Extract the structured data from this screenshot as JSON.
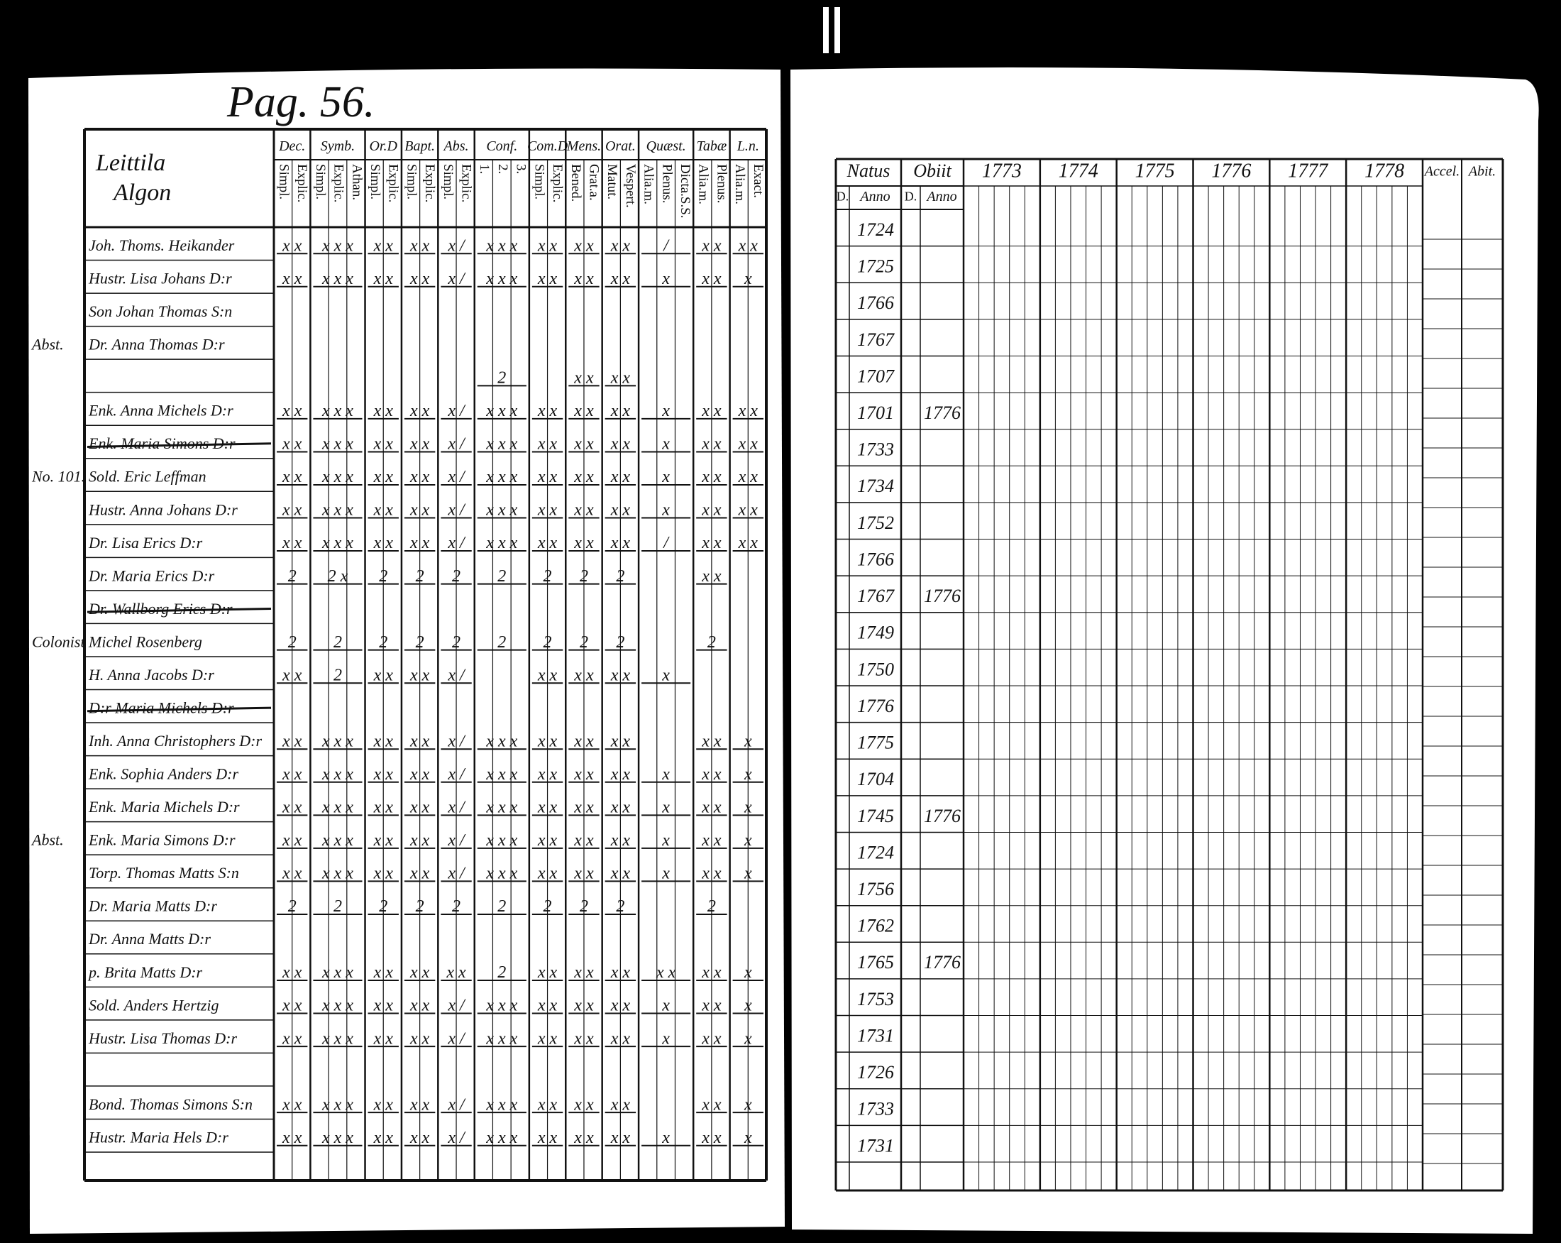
{
  "header": {
    "title": "Pag. 56."
  },
  "left_table": {
    "name_header": [
      "Leittila",
      "Algon"
    ],
    "column_groups": [
      {
        "label": "Dec.",
        "subs": [
          "Simpl.",
          "Explic."
        ]
      },
      {
        "label": "Symb.",
        "subs": [
          "Simpl.",
          "Explic.",
          "Athan."
        ]
      },
      {
        "label": "Or.D",
        "subs": [
          "Simpl.",
          "Explic."
        ]
      },
      {
        "label": "Bapt.",
        "subs": [
          "Simpl.",
          "Explic."
        ]
      },
      {
        "label": "Abs.",
        "subs": [
          "Simpl.",
          "Explic."
        ]
      },
      {
        "label": "Conf.",
        "subs": [
          "1.",
          "2.",
          "3."
        ]
      },
      {
        "label": "Com.D",
        "subs": [
          "Simpl.",
          "Explic."
        ]
      },
      {
        "label": "Mens.",
        "subs": [
          "Bened.",
          "Grat.a."
        ]
      },
      {
        "label": "Orat.",
        "subs": [
          "Matut.",
          "Vespert."
        ]
      },
      {
        "label": "Quæst.",
        "subs": [
          "Alia.m.",
          "Plenus.",
          "Dicta.S.S."
        ]
      },
      {
        "label": "Tabæ",
        "subs": [
          "Alia.m.",
          "Plenus."
        ]
      },
      {
        "label": "L.n.",
        "subs": [
          "Alia.m.",
          "Exact."
        ]
      }
    ],
    "rows": [
      {
        "name": "Joh. Thoms. Heikander",
        "marks": [
          "x x",
          "x x x",
          "x x",
          "x x",
          "x /",
          "x x x",
          "x x",
          "x x",
          "x x",
          "/",
          "x x",
          "x x"
        ]
      },
      {
        "name": "Hustr. Lisa Johans D:r",
        "marks": [
          "x x",
          "x x x",
          "x x",
          "x x",
          "x /",
          "x x x",
          "x x",
          "x x",
          "x x",
          "x",
          "x x",
          "x"
        ]
      },
      {
        "name": "Son Johan Thomas S:n"
      },
      {
        "name": "Dr. Anna Thomas D:r",
        "margin": "Abst."
      },
      {
        "name": null,
        "marks": [
          null,
          null,
          null,
          null,
          null,
          "2",
          null,
          "x x",
          "x x",
          null,
          null,
          null
        ]
      },
      {
        "name": "Enk. Anna Michels D:r",
        "marks": [
          "x x",
          "x x x",
          "x x",
          "x x",
          "x /",
          "x x x",
          "x x",
          "x x",
          "x x",
          "x",
          "x x",
          "x x"
        ]
      },
      {
        "name": "Enk. Maria Simons D:r",
        "struck": true,
        "marks": [
          "x x",
          "x x x",
          "x x",
          "x x",
          "x /",
          "x x x",
          "x x",
          "x x",
          "x x",
          "x",
          "x x",
          "x x"
        ]
      },
      {
        "name": "Sold. Eric Leffman",
        "margin": "No. 101.",
        "marks": [
          "x x",
          "x x x",
          "x x",
          "x x",
          "x /",
          "x x x",
          "x x",
          "x x",
          "x x",
          "x",
          "x x",
          "x x"
        ]
      },
      {
        "name": "Hustr. Anna Johans D:r",
        "marks": [
          "x x",
          "x x x",
          "x x",
          "x x",
          "x /",
          "x x x",
          "x x",
          "x x",
          "x x",
          "x",
          "x x",
          "x x"
        ]
      },
      {
        "name": "Dr. Lisa Erics D:r",
        "marks": [
          "x x",
          "x x x",
          "x x",
          "x x",
          "x /",
          "x x x",
          "x x",
          "x x",
          "x x",
          "/",
          "x x",
          "x x"
        ]
      },
      {
        "name": "Dr. Maria Erics D:r",
        "marks": [
          "2",
          "2 x",
          "2",
          "2",
          "2",
          "2",
          "2",
          "2",
          "2",
          null,
          "x x",
          null
        ]
      },
      {
        "name": "Dr. Wallborg Erics D:r",
        "struck": true
      },
      {
        "name": "Michel Rosenberg",
        "margin": "Colonist",
        "marks": [
          "2",
          "2",
          "2",
          "2",
          "2",
          "2",
          "2",
          "2",
          "2",
          null,
          "2",
          null
        ]
      },
      {
        "name": "H. Anna Jacobs D:r",
        "marks": [
          "x x",
          "2",
          "x x",
          "x x",
          "x /",
          null,
          "x x",
          "x x",
          "x x",
          "x",
          null,
          null
        ]
      },
      {
        "name": "D:r Maria Michels D:r",
        "struck": true
      },
      {
        "name": "Inh. Anna Christophers D:r",
        "marks": [
          "x x",
          "x x x",
          "x x",
          "x x",
          "x /",
          "x x x",
          "x x",
          "x x",
          "x x",
          null,
          "x x",
          "x"
        ]
      },
      {
        "name": "Enk. Sophia Anders D:r",
        "marks": [
          "x x",
          "x x x",
          "x x",
          "x x",
          "x /",
          "x x x",
          "x x",
          "x x",
          "x x",
          "x",
          "x x",
          "x"
        ]
      },
      {
        "name": "Enk. Maria Michels D:r",
        "marks": [
          "x x",
          "x x x",
          "x x",
          "x x",
          "x /",
          "x x x",
          "x x",
          "x x",
          "x x",
          "x",
          "x x",
          "x"
        ]
      },
      {
        "name": "Enk. Maria Simons D:r",
        "margin": "Abst.",
        "marks": [
          "x x",
          "x x x",
          "x x",
          "x x",
          "x /",
          "x x x",
          "x x",
          "x x",
          "x x",
          "x",
          "x x",
          "x"
        ]
      },
      {
        "name": "Torp. Thomas Matts S:n",
        "marks": [
          "x x",
          "x x x",
          "x x",
          "x x",
          "x /",
          "x x x",
          "x x",
          "x x",
          "x x",
          "x",
          "x x",
          "x"
        ]
      },
      {
        "name": "Dr. Maria Matts D:r",
        "marks": [
          "2",
          "2",
          "2",
          "2",
          "2",
          "2",
          "2",
          "2",
          "2",
          null,
          "2",
          null
        ]
      },
      {
        "name": "Dr. Anna Matts D:r"
      },
      {
        "name": "p. Brita Matts D:r",
        "marks": [
          "x x",
          "x x x",
          "x x",
          "x x",
          "x x",
          "2",
          "x x",
          "x x",
          "x x",
          "x x",
          "x x",
          "x"
        ]
      },
      {
        "name": "Sold. Anders Hertzig",
        "marks": [
          "x x",
          "x x x",
          "x x",
          "x x",
          "x /",
          "x x x",
          "x x",
          "x x",
          "x x",
          "x",
          "x x",
          "x"
        ]
      },
      {
        "name": "Hustr. Lisa Thomas D:r",
        "marks": [
          "x x",
          "x x x",
          "x x",
          "x x",
          "x /",
          "x x x",
          "x x",
          "x x",
          "x x",
          "x",
          "x x",
          "x"
        ]
      },
      {
        "name": null
      },
      {
        "name": "Bond. Thomas Simons S:n",
        "marks": [
          "x x",
          "x x x",
          "x x",
          "x x",
          "x /",
          "x x x",
          "x x",
          "x x",
          "x x",
          null,
          "x x",
          "x"
        ]
      },
      {
        "name": "Hustr. Maria Hels D:r",
        "marks": [
          "x x",
          "x x x",
          "x x",
          "x x",
          "x /",
          "x x x",
          "x x",
          "x x",
          "x x",
          "x",
          "x x",
          "x"
        ]
      }
    ]
  },
  "right_table": {
    "groups": [
      {
        "label": "Natus",
        "subs": [
          "D.",
          "Anno"
        ]
      },
      {
        "label": "Obiit",
        "subs": [
          "D.",
          "Anno"
        ]
      }
    ],
    "years": [
      "1773",
      "1774",
      "1775",
      "1776",
      "1777",
      "1778"
    ],
    "extra": [
      "Accel.",
      "Abit."
    ],
    "rows": [
      {
        "year": 1724
      },
      {
        "year": 1725
      },
      {
        "year": 1766
      },
      {
        "year": 1767
      },
      {
        "year": 1707
      },
      {
        "year": 1701,
        "obiit": 1776
      },
      {
        "year": 1733
      },
      {
        "year": 1734
      },
      {
        "year": 1752
      },
      {
        "year": 1766
      },
      {
        "year": 1767,
        "obiit": 1776
      },
      {
        "year": 1749
      },
      {
        "year": 1750
      },
      {
        "year": 1776
      },
      {
        "year": 1775
      },
      {
        "year": 1704
      },
      {
        "year": 1745,
        "obiit": 1776
      },
      {
        "year": 1724
      },
      {
        "year": 1756
      },
      {
        "year": 1762
      },
      {
        "year": 1765,
        "obiit": 1776
      },
      {
        "year": 1753
      },
      {
        "year": 1731
      },
      {
        "year": 1726
      },
      {
        "year": 1733
      },
      {
        "year": 1731
      }
    ]
  }
}
